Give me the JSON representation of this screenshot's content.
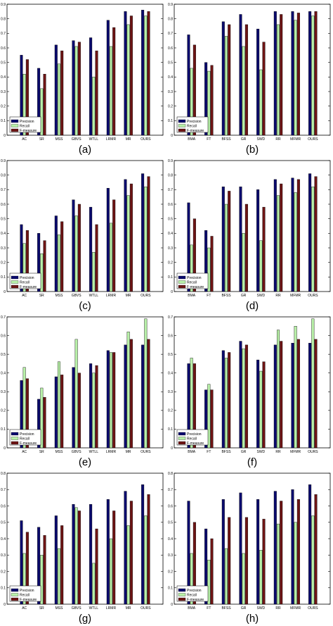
{
  "colors": {
    "precision": "#0a0a6e",
    "recall": "#b8f0a8",
    "fmeasure": "#6e1414"
  },
  "chart_data": [
    {
      "type": "bar",
      "caption": "(a)",
      "legend": [
        "Precision",
        "Recall",
        "F-measure"
      ],
      "legend_position": "bottom-left",
      "ylim": [
        0,
        0.9
      ],
      "yticks": [
        0,
        0.1,
        0.2,
        0.3,
        0.4,
        0.5,
        0.6,
        0.7,
        0.8,
        0.9
      ],
      "grid": false,
      "categories": [
        "AC",
        "SR",
        "MSS",
        "GBVS",
        "WTLL",
        "LRMR",
        "MR",
        "OURS"
      ],
      "series": [
        {
          "name": "Precision",
          "values": [
            0.55,
            0.46,
            0.62,
            0.65,
            0.67,
            0.79,
            0.85,
            0.86
          ]
        },
        {
          "name": "Recall",
          "values": [
            0.42,
            0.32,
            0.49,
            0.61,
            0.4,
            0.61,
            0.76,
            0.82
          ]
        },
        {
          "name": "F-measure",
          "values": [
            0.52,
            0.42,
            0.58,
            0.64,
            0.58,
            0.74,
            0.82,
            0.85
          ]
        }
      ]
    },
    {
      "type": "bar",
      "caption": "(b)",
      "legend": [
        "Precision",
        "Recall",
        "F-measure"
      ],
      "legend_position": "bottom-left",
      "ylim": [
        0,
        0.9
      ],
      "yticks": [
        0,
        0.1,
        0.2,
        0.3,
        0.4,
        0.5,
        0.6,
        0.7,
        0.8,
        0.9
      ],
      "grid": false,
      "categories": [
        "BMA",
        "FT",
        "BFSS",
        "GR",
        "SWD",
        "RR",
        "MFMR",
        "OURS"
      ],
      "series": [
        {
          "name": "Precision",
          "values": [
            0.69,
            0.5,
            0.78,
            0.83,
            0.73,
            0.85,
            0.85,
            0.85
          ]
        },
        {
          "name": "Recall",
          "values": [
            0.46,
            0.44,
            0.68,
            0.61,
            0.45,
            0.76,
            0.79,
            0.82
          ]
        },
        {
          "name": "F-measure",
          "values": [
            0.62,
            0.48,
            0.76,
            0.76,
            0.64,
            0.83,
            0.84,
            0.85
          ]
        }
      ]
    },
    {
      "type": "bar",
      "caption": "(c)",
      "legend": [
        "Precision",
        "Recall",
        "F-measure"
      ],
      "legend_position": "bottom-left",
      "ylim": [
        0,
        0.9
      ],
      "yticks": [
        0,
        0.1,
        0.2,
        0.3,
        0.4,
        0.5,
        0.6,
        0.7,
        0.8,
        0.9
      ],
      "grid": false,
      "categories": [
        "AC",
        "SR",
        "MSS",
        "GBVS",
        "WTLL",
        "LRMR",
        "MR",
        "OURS"
      ],
      "series": [
        {
          "name": "Precision",
          "values": [
            0.46,
            0.4,
            0.52,
            0.63,
            0.58,
            0.71,
            0.77,
            0.81
          ]
        },
        {
          "name": "Recall",
          "values": [
            0.33,
            0.26,
            0.39,
            0.52,
            0.27,
            0.47,
            0.66,
            0.72
          ]
        },
        {
          "name": "F-measure",
          "values": [
            0.42,
            0.35,
            0.48,
            0.6,
            0.46,
            0.63,
            0.74,
            0.79
          ]
        }
      ]
    },
    {
      "type": "bar",
      "caption": "(d)",
      "legend": [
        "Precision",
        "Recall",
        "F-measure"
      ],
      "legend_position": "bottom-left",
      "ylim": [
        0,
        0.9
      ],
      "yticks": [
        0,
        0.1,
        0.2,
        0.3,
        0.4,
        0.5,
        0.6,
        0.7,
        0.8,
        0.9
      ],
      "grid": false,
      "categories": [
        "BMA",
        "FT",
        "BFSS",
        "GR",
        "SWD",
        "RR",
        "MFMR",
        "OURS"
      ],
      "series": [
        {
          "name": "Precision",
          "values": [
            0.61,
            0.42,
            0.72,
            0.72,
            0.7,
            0.77,
            0.78,
            0.81
          ]
        },
        {
          "name": "Recall",
          "values": [
            0.32,
            0.3,
            0.6,
            0.4,
            0.35,
            0.66,
            0.68,
            0.72
          ]
        },
        {
          "name": "F-measure",
          "values": [
            0.5,
            0.38,
            0.69,
            0.6,
            0.58,
            0.74,
            0.77,
            0.79
          ]
        }
      ]
    },
    {
      "type": "bar",
      "caption": "(e)",
      "legend": [
        "Precision",
        "Recall",
        "F-measure"
      ],
      "legend_position": "bottom-left",
      "ylim": [
        0,
        0.7
      ],
      "yticks": [
        0,
        0.1,
        0.2,
        0.3,
        0.4,
        0.5,
        0.6,
        0.7
      ],
      "grid": false,
      "categories": [
        "AC",
        "SR",
        "MSS",
        "GBVS",
        "WTLL",
        "LRMR",
        "MR",
        "OURS"
      ],
      "series": [
        {
          "name": "Precision",
          "values": [
            0.36,
            0.26,
            0.38,
            0.43,
            0.45,
            0.52,
            0.55,
            0.55
          ]
        },
        {
          "name": "Recall",
          "values": [
            0.43,
            0.32,
            0.46,
            0.58,
            0.4,
            0.51,
            0.62,
            0.69
          ]
        },
        {
          "name": "F-measure",
          "values": [
            0.37,
            0.27,
            0.39,
            0.4,
            0.44,
            0.51,
            0.58,
            0.58
          ]
        }
      ]
    },
    {
      "type": "bar",
      "caption": "(f)",
      "legend": [
        "Precision",
        "Recall",
        "F-measure"
      ],
      "legend_position": "bottom-left",
      "ylim": [
        0,
        0.7
      ],
      "yticks": [
        0,
        0.1,
        0.2,
        0.3,
        0.4,
        0.5,
        0.6,
        0.7
      ],
      "grid": false,
      "categories": [
        "BMA",
        "FT",
        "BFSS",
        "GR",
        "SWD",
        "RR",
        "MFMR",
        "OURS"
      ],
      "series": [
        {
          "name": "Precision",
          "values": [
            0.45,
            0.31,
            0.52,
            0.57,
            0.47,
            0.55,
            0.56,
            0.56
          ]
        },
        {
          "name": "Recall",
          "values": [
            0.48,
            0.34,
            0.48,
            0.53,
            0.41,
            0.63,
            0.65,
            0.69
          ]
        },
        {
          "name": "F-measure",
          "values": [
            0.45,
            0.31,
            0.51,
            0.55,
            0.46,
            0.57,
            0.58,
            0.58
          ]
        }
      ]
    },
    {
      "type": "bar",
      "caption": "(g)",
      "legend": [
        "Precision",
        "Recall",
        "F-measure"
      ],
      "legend_position": "bottom-left",
      "ylim": [
        0,
        0.8
      ],
      "yticks": [
        0,
        0.1,
        0.2,
        0.3,
        0.4,
        0.5,
        0.6,
        0.7,
        0.8
      ],
      "grid": false,
      "categories": [
        "AC",
        "SR",
        "MSS",
        "GBVS",
        "WTLL",
        "LRMR",
        "MR",
        "OURS"
      ],
      "series": [
        {
          "name": "Precision",
          "values": [
            0.51,
            0.47,
            0.54,
            0.61,
            0.61,
            0.64,
            0.69,
            0.73
          ]
        },
        {
          "name": "Recall",
          "values": [
            0.31,
            0.3,
            0.34,
            0.59,
            0.25,
            0.4,
            0.48,
            0.54
          ]
        },
        {
          "name": "F-measure",
          "values": [
            0.44,
            0.42,
            0.48,
            0.57,
            0.46,
            0.57,
            0.63,
            0.67
          ]
        }
      ]
    },
    {
      "type": "bar",
      "caption": "(h)",
      "legend": [
        "Precision",
        "Recall",
        "F-measure"
      ],
      "legend_position": "bottom-left",
      "ylim": [
        0,
        0.8
      ],
      "yticks": [
        0,
        0.1,
        0.2,
        0.3,
        0.4,
        0.5,
        0.6,
        0.7,
        0.8
      ],
      "grid": false,
      "categories": [
        "BMA",
        "FT",
        "BFSS",
        "GR",
        "SWD",
        "RR",
        "MFMR",
        "OURS"
      ],
      "series": [
        {
          "name": "Precision",
          "values": [
            0.63,
            0.46,
            0.64,
            0.68,
            0.64,
            0.69,
            0.7,
            0.73
          ]
        },
        {
          "name": "Recall",
          "values": [
            0.31,
            0.27,
            0.34,
            0.31,
            0.33,
            0.49,
            0.5,
            0.54
          ]
        },
        {
          "name": "F-measure",
          "values": [
            0.5,
            0.4,
            0.53,
            0.53,
            0.52,
            0.63,
            0.64,
            0.67
          ]
        }
      ]
    }
  ]
}
